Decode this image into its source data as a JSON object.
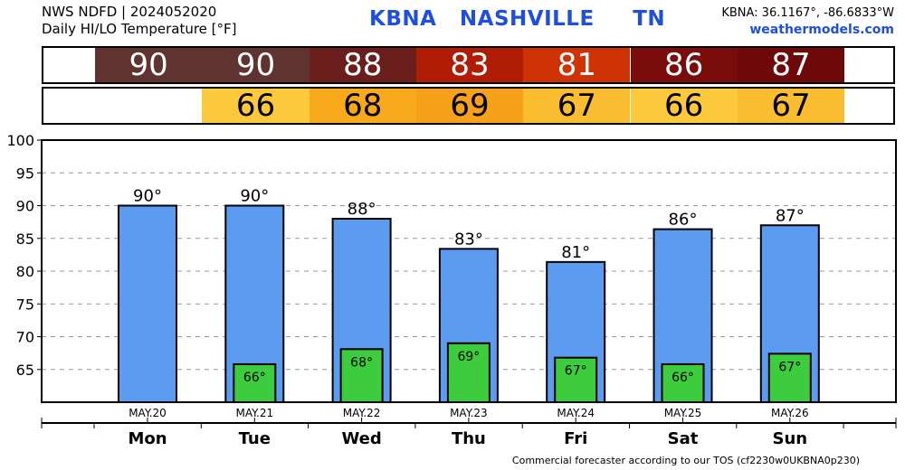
{
  "header": {
    "line1": "NWS NDFD | 2024052020",
    "line2": "Daily HI/LO Temperature [°F]",
    "station": "KBNA   NASHVILLE     TN",
    "coords": "KBNA: 36.1167°, -86.6833°W",
    "site": "weathermodels.com"
  },
  "hi_strip": [
    {
      "text": "90",
      "color": "#5e3330"
    },
    {
      "text": "90",
      "color": "#5e3330"
    },
    {
      "text": "88",
      "color": "#6b1f1c"
    },
    {
      "text": "83",
      "color": "#b01c05"
    },
    {
      "text": "81",
      "color": "#cf3204"
    },
    {
      "text": "86",
      "color": "#7a0c0c"
    },
    {
      "text": "87",
      "color": "#6e0909"
    }
  ],
  "lo_strip": [
    {
      "text": "",
      "color": "#ffffff"
    },
    {
      "text": "66",
      "color": "#fdc93c"
    },
    {
      "text": "68",
      "color": "#f9aa1c"
    },
    {
      "text": "69",
      "color": "#f7a019"
    },
    {
      "text": "67",
      "color": "#fbbd30"
    },
    {
      "text": "66",
      "color": "#fdc93c"
    },
    {
      "text": "67",
      "color": "#fbbd30"
    }
  ],
  "chart_data": {
    "type": "bar",
    "title": "Daily HI/LO Temperature [°F]",
    "ylim": [
      60,
      100
    ],
    "yticks": [
      "65",
      "70",
      "75",
      "80",
      "85",
      "90",
      "95",
      "100"
    ],
    "categories": [
      "Mon",
      "Tue",
      "Wed",
      "Thu",
      "Fri",
      "Sat",
      "Sun"
    ],
    "dates": [
      "MAY.20",
      "MAY.21",
      "MAY.22",
      "MAY.23",
      "MAY.24",
      "MAY.25",
      "MAY.26"
    ],
    "series": [
      {
        "values": [
          90,
          90,
          88,
          83.4,
          81.4,
          86.4,
          87
        ],
        "labels": [
          "90°",
          "90°",
          "88°",
          "83°",
          "81°",
          "86°",
          "87°"
        ],
        "color": "#5b9cf0"
      },
      {
        "values": [
          null,
          65.8,
          68.1,
          69,
          66.8,
          65.8,
          67.4
        ],
        "labels": [
          "",
          "66°",
          "68°",
          "69°",
          "67°",
          "66°",
          "67°"
        ],
        "color": "#3dcc3d"
      }
    ],
    "grid": true
  },
  "footer": "Commercial forecaster according to our TOS (cf2230w0UKBNA0p230)"
}
